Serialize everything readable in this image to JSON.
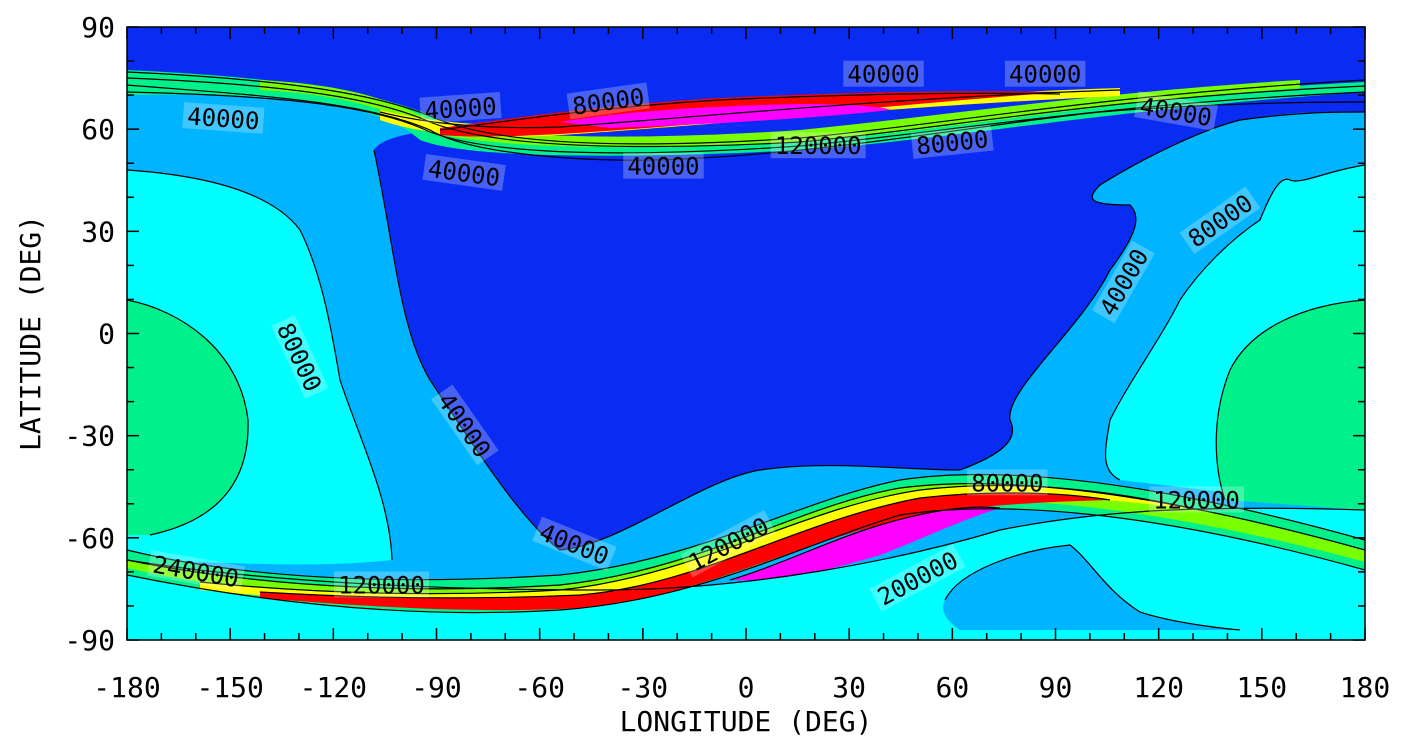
{
  "chart_data": {
    "type": "heatmap",
    "subtype": "filled-contour-map",
    "title": "",
    "xlabel": "LONGITUDE (DEG)",
    "ylabel": "LATITUDE (DEG)",
    "xlim": [
      -180,
      180
    ],
    "ylim": [
      -90,
      90
    ],
    "x_ticks": [
      "-180",
      "-150",
      "-120",
      "-90",
      "-60",
      "-30",
      "0",
      "30",
      "60",
      "90",
      "120",
      "150",
      "180"
    ],
    "y_ticks": [
      "-90",
      "-60",
      "-30",
      "0",
      "30",
      "60",
      "90"
    ],
    "grid": false,
    "legend": "none",
    "contour_levels": [
      40000,
      80000,
      120000,
      160000,
      200000,
      240000
    ],
    "fill_colors": {
      "below_40000": "#0a2cf2",
      "40000_80000": "#00b4ff",
      "80000_120000": "#00ffff",
      "120000_160000": "#00f08c",
      "160000_200000": "#78ff00",
      "200000_240000": "#ffff00",
      "240000_280000": "#ff8c00",
      "280000_320000": "#ff0000",
      "above_320000": "#ff00ff"
    },
    "contour_labels": [
      {
        "text": "40000",
        "lon": -152,
        "lat": 63,
        "angle": 4
      },
      {
        "text": "40000",
        "lon": -83,
        "lat": 66,
        "angle": -4
      },
      {
        "text": "80000",
        "lon": -40,
        "lat": 68,
        "angle": -8
      },
      {
        "text": "40000",
        "lon": 40,
        "lat": 76,
        "angle": 0
      },
      {
        "text": "40000",
        "lon": 87,
        "lat": 76,
        "angle": 0
      },
      {
        "text": "40000",
        "lon": 125,
        "lat": 65,
        "angle": 10
      },
      {
        "text": "40000",
        "lon": -82,
        "lat": 47,
        "angle": 8
      },
      {
        "text": "40000",
        "lon": -24,
        "lat": 49,
        "angle": 0
      },
      {
        "text": "120000",
        "lon": 21,
        "lat": 55,
        "angle": 0
      },
      {
        "text": "80000",
        "lon": 60,
        "lat": 56,
        "angle": -6
      },
      {
        "text": "80000",
        "lon": -130,
        "lat": -7,
        "angle": 65
      },
      {
        "text": "40000",
        "lon": -82,
        "lat": -27,
        "angle": 55
      },
      {
        "text": "40000",
        "lon": 110,
        "lat": 15,
        "angle": -60
      },
      {
        "text": "80000",
        "lon": 138,
        "lat": 33,
        "angle": -35
      },
      {
        "text": "80000",
        "lon": 76,
        "lat": -44,
        "angle": 0
      },
      {
        "text": "120000",
        "lon": 131,
        "lat": -49,
        "angle": 0
      },
      {
        "text": "40000",
        "lon": -50,
        "lat": -62,
        "angle": 22
      },
      {
        "text": "120000",
        "lon": -5,
        "lat": -62,
        "angle": -28
      },
      {
        "text": "200000",
        "lon": 50,
        "lat": -72,
        "angle": -28
      },
      {
        "text": "240000",
        "lon": -160,
        "lat": -70,
        "angle": 10
      },
      {
        "text": "120000",
        "lon": -106,
        "lat": -74,
        "angle": 0
      }
    ]
  }
}
